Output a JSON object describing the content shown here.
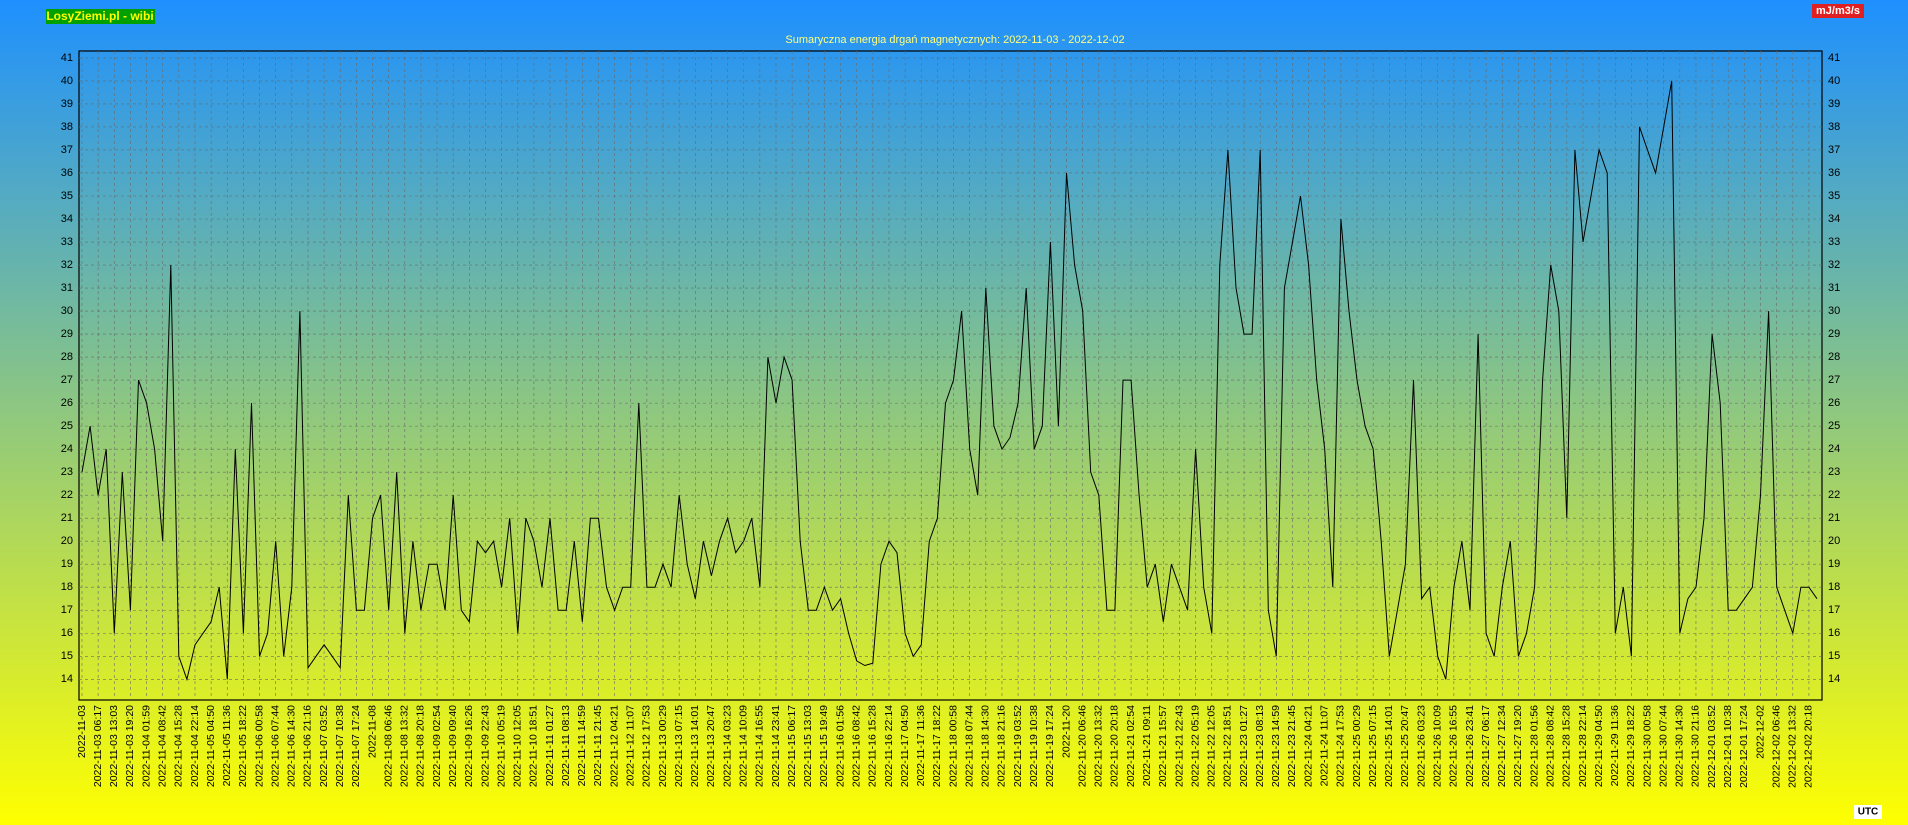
{
  "header": {
    "brand": "LosyZiemi.pl - wibi",
    "unit": "mJ/m3/s"
  },
  "footer": {
    "timezone": "UTC"
  },
  "chart_data": {
    "type": "line",
    "title": "Sumaryczna energia drgań magnetycznych: 2022-11-03 - 2022-12-02",
    "categories": [
      "2022-11-03",
      null,
      "2022-11-03 06:17",
      null,
      "2022-11-03 13:03",
      null,
      "2022-11-03 19:20",
      null,
      "2022-11-04 01:59",
      null,
      "2022-11-04 08:42",
      null,
      "2022-11-04 15:28",
      null,
      "2022-11-04 22:14",
      null,
      "2022-11-05 04:50",
      null,
      "2022-11-05 11:36",
      null,
      "2022-11-05 18:22",
      null,
      "2022-11-06 00:58",
      null,
      "2022-11-06 07:44",
      null,
      "2022-11-06 14:30",
      null,
      "2022-11-06 21:16",
      null,
      "2022-11-07 03:52",
      null,
      "2022-11-07 10:38",
      null,
      "2022-11-07 17:24",
      null,
      "2022-11-08",
      null,
      "2022-11-08 06:46",
      null,
      "2022-11-08 13:32",
      null,
      "2022-11-08 20:18",
      null,
      "2022-11-09 02:54",
      null,
      "2022-11-09 09:40",
      null,
      "2022-11-09 16:26",
      null,
      "2022-11-09 22:43",
      null,
      "2022-11-10 05:19",
      null,
      "2022-11-10 12:05",
      null,
      "2022-11-10 18:51",
      null,
      "2022-11-11 01:27",
      null,
      "2022-11-11 08:13",
      null,
      "2022-11-11 14:59",
      null,
      "2022-11-11 21:45",
      null,
      "2022-11-12 04:21",
      null,
      "2022-11-12 11:07",
      null,
      "2022-11-12 17:53",
      null,
      "2022-11-13 00:29",
      null,
      "2022-11-13 07:15",
      null,
      "2022-11-13 14:01",
      null,
      "2022-11-13 20:47",
      null,
      "2022-11-14 03:23",
      null,
      "2022-11-14 10:09",
      null,
      "2022-11-14 16:55",
      null,
      "2022-11-14 23:41",
      null,
      "2022-11-15 06:17",
      null,
      "2022-11-15 13:03",
      null,
      "2022-11-15 19:49",
      null,
      "2022-11-16 01:56",
      null,
      "2022-11-16 08:42",
      null,
      "2022-11-16 15:28",
      null,
      "2022-11-16 22:14",
      null,
      "2022-11-17 04:50",
      null,
      "2022-11-17 11:36",
      null,
      "2022-11-17 18:22",
      null,
      "2022-11-18 00:58",
      null,
      "2022-11-18 07:44",
      null,
      "2022-11-18 14:30",
      null,
      "2022-11-18 21:16",
      null,
      "2022-11-19 03:52",
      null,
      "2022-11-19 10:38",
      null,
      "2022-11-19 17:24",
      null,
      "2022-11-20",
      null,
      "2022-11-20 06:46",
      null,
      "2022-11-20 13:32",
      null,
      "2022-11-20 20:18",
      null,
      "2022-11-21 02:54",
      null,
      "2022-11-21 09:11",
      null,
      "2022-11-21 15:57",
      null,
      "2022-11-21 22:43",
      null,
      "2022-11-22 05:19",
      null,
      "2022-11-22 12:05",
      null,
      "2022-11-22 18:51",
      null,
      "2022-11-23 01:27",
      null,
      "2022-11-23 08:13",
      null,
      "2022-11-23 14:59",
      null,
      "2022-11-23 21:45",
      null,
      "2022-11-24 04:21",
      null,
      "2022-11-24 11:07",
      null,
      "2022-11-24 17:53",
      null,
      "2022-11-25 00:29",
      null,
      "2022-11-25 07:15",
      null,
      "2022-11-25 14:01",
      null,
      "2022-11-25 20:47",
      null,
      "2022-11-26 03:23",
      null,
      "2022-11-26 10:09",
      null,
      "2022-11-26 16:55",
      null,
      "2022-11-26 23:41",
      null,
      "2022-11-27 06:17",
      null,
      "2022-11-27 12:34",
      null,
      "2022-11-27 19:20",
      null,
      "2022-11-28 01:56",
      null,
      "2022-11-28 08:42",
      null,
      "2022-11-28 15:28",
      null,
      "2022-11-28 22:14",
      null,
      "2022-11-29 04:50",
      null,
      "2022-11-29 11:36",
      null,
      "2022-11-29 18:22",
      null,
      "2022-11-30 00:58",
      null,
      "2022-11-30 07:44",
      null,
      "2022-11-30 14:30",
      null,
      "2022-11-30 21:16",
      null,
      "2022-12-01 03:52",
      null,
      "2022-12-01 10:38",
      null,
      "2022-12-01 17:24",
      null,
      "2022-12-02",
      null,
      "2022-12-02 06:46",
      null,
      "2022-12-02 13:32",
      null,
      "2022-12-02 20:18",
      null
    ],
    "values": [
      23,
      25,
      22,
      24,
      16,
      23,
      17,
      27,
      26,
      24,
      20,
      32,
      15,
      14,
      15.5,
      16,
      16.5,
      18,
      14,
      24,
      16,
      26,
      15,
      16,
      20,
      15,
      18,
      30,
      14.5,
      15,
      15.5,
      15,
      14.5,
      22,
      17,
      17,
      21,
      22,
      17,
      23,
      16,
      20,
      17,
      19,
      19,
      17,
      22,
      17,
      16.5,
      20,
      19.5,
      20,
      18,
      21,
      16,
      21,
      20,
      18,
      21,
      17,
      17,
      20,
      16.5,
      21,
      21,
      18,
      17,
      18,
      18,
      26,
      18,
      18,
      19,
      18,
      22,
      19,
      17.5,
      20,
      18.5,
      20,
      21,
      19.5,
      20,
      21,
      18,
      28,
      26,
      28,
      27,
      20,
      17,
      17,
      18,
      17,
      17.5,
      16,
      14.8,
      14.6,
      14.7,
      19,
      20,
      19.5,
      16,
      15,
      15.5,
      20,
      21,
      26,
      27,
      30,
      24,
      22,
      31,
      25,
      24,
      24.5,
      26,
      31,
      24,
      25,
      33,
      25,
      36,
      32,
      30,
      23,
      22,
      17,
      17,
      27,
      27,
      22,
      18,
      19,
      16.5,
      19,
      18,
      17,
      24,
      18,
      16,
      32,
      37,
      31,
      29,
      29,
      37,
      17,
      15,
      31,
      33,
      35,
      32,
      27,
      24,
      18,
      34,
      30,
      27,
      25,
      24,
      20,
      15,
      17,
      19,
      27,
      17.5,
      18,
      15,
      14,
      18,
      20,
      17,
      29,
      16,
      15,
      18,
      20,
      15,
      16,
      18,
      27,
      32,
      30,
      21,
      37,
      33,
      35,
      37,
      36,
      16,
      18,
      15,
      38,
      37,
      36,
      38,
      40,
      16,
      17.5,
      18,
      21,
      29,
      26,
      17,
      17,
      17.5,
      18,
      22,
      30,
      18,
      17,
      16,
      18,
      18,
      17.5
    ],
    "color": "#000000",
    "ylim": [
      13.1,
      41.3
    ],
    "yticks": [
      14,
      15,
      16,
      17,
      18,
      19,
      20,
      21,
      22,
      23,
      24,
      25,
      26,
      27,
      28,
      29,
      30,
      31,
      32,
      33,
      34,
      35,
      36,
      37,
      38,
      39,
      40,
      41
    ],
    "grid": true
  }
}
